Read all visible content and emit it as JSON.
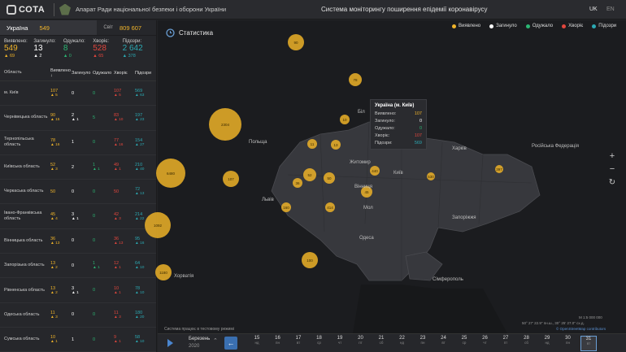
{
  "header": {
    "logo_text": "СОТА",
    "org_name": "Апарат Ради національної безпеки і оборони України",
    "system_title": "Система моніторингу поширення епідемії коронавірусу",
    "lang_uk": "UK",
    "lang_en": "EN"
  },
  "summary": {
    "country_label": "Україна",
    "country_value": "549",
    "world_label": "Світ",
    "world_value": "809 607"
  },
  "stats": [
    {
      "label": "Виявлено:",
      "value": "549",
      "delta": "69",
      "color": "#f0b42a"
    },
    {
      "label": "Загинуло:",
      "value": "13",
      "delta": "2",
      "color": "#ffffff"
    },
    {
      "label": "Одужало:",
      "value": "8",
      "delta": "0",
      "color": "#2bb673"
    },
    {
      "label": "Хворіє:",
      "value": "528",
      "delta": "65",
      "color": "#e2463d"
    },
    {
      "label": "Підозри:",
      "value": "2 642",
      "delta": "378",
      "color": "#2ba9b3"
    }
  ],
  "table": {
    "headers": [
      "Область",
      "Виявлено ↓",
      "Загинуло",
      "Одужало",
      "Хворіє",
      "Підозри"
    ],
    "rows": [
      {
        "region": "м. Київ",
        "vals": [
          "107",
          "0",
          "0",
          "107",
          "569"
        ],
        "deltas": [
          "5",
          "",
          "",
          "5",
          "63"
        ]
      },
      {
        "region": "Чернівецька область",
        "vals": [
          "90",
          "2",
          "5",
          "83",
          "197"
        ],
        "deltas": [
          "15",
          "1",
          "",
          "10",
          "23"
        ]
      },
      {
        "region": "Тернопільська область",
        "vals": [
          "78",
          "1",
          "0",
          "77",
          "154"
        ],
        "deltas": [
          "16",
          "",
          "",
          "16",
          "27"
        ]
      },
      {
        "region": "Київська область",
        "vals": [
          "52",
          "2",
          "1",
          "49",
          "210"
        ],
        "deltas": [
          "3",
          "",
          "1",
          "1",
          "40"
        ]
      },
      {
        "region": "Черкаська область",
        "vals": [
          "50",
          "0",
          "0",
          "50",
          "72"
        ],
        "deltas": [
          "",
          "",
          "",
          "",
          "13"
        ]
      },
      {
        "region": "Івано-Франківська область",
        "vals": [
          "45",
          "3",
          "0",
          "42",
          "214"
        ],
        "deltas": [
          "4",
          "1",
          "",
          "3",
          "22"
        ]
      },
      {
        "region": "Вінницька область",
        "vals": [
          "36",
          "0",
          "0",
          "36",
          "95"
        ],
        "deltas": [
          "13",
          "",
          "",
          "13",
          "16"
        ]
      },
      {
        "region": "Запорізька область",
        "vals": [
          "13",
          "0",
          "1",
          "12",
          "64"
        ],
        "deltas": [
          "2",
          "",
          "1",
          "1",
          "10"
        ]
      },
      {
        "region": "Рівненська область",
        "vals": [
          "13",
          "3",
          "0",
          "10",
          "78"
        ],
        "deltas": [
          "2",
          "1",
          "",
          "1",
          "10"
        ]
      },
      {
        "region": "Одеська область",
        "vals": [
          "11",
          "0",
          "0",
          "11",
          "180"
        ],
        "deltas": [
          "3",
          "",
          "",
          "3",
          "20"
        ]
      },
      {
        "region": "Сумська область",
        "vals": [
          "10",
          "1",
          "0",
          "9",
          "58"
        ],
        "deltas": [
          "1",
          "",
          "",
          "1",
          "10"
        ]
      }
    ]
  },
  "map": {
    "statistics_button": "Статистика",
    "legend": [
      {
        "label": "Виявлено",
        "color": "#f0b42a"
      },
      {
        "label": "Загинуло",
        "color": "#ffffff"
      },
      {
        "label": "Одужало",
        "color": "#2bb673"
      },
      {
        "label": "Хворіє",
        "color": "#e2463d"
      },
      {
        "label": "Підозри",
        "color": "#2ba9b3"
      }
    ],
    "labels": {
      "poland": "Польща",
      "belarus": "Біл",
      "russia": "Російська Федерація",
      "croatia": "Хорватія",
      "moldova": "Мол",
      "kyiv": "Київ",
      "kharkiv": "Харків",
      "odesa": "Одеса",
      "simferopol": "Сімферополь",
      "zhytomyr": "Житомир",
      "vinnytsia": "Вінниця",
      "lviv": "Львів",
      "zaporizhzhia": "Запоріжжя"
    },
    "tooltip": {
      "title": "Україна (м. Київ)",
      "rows": [
        {
          "label": "Виявлено:",
          "value": "107",
          "color": "#f0b42a"
        },
        {
          "label": "Загинуло:",
          "value": "0",
          "color": "#ffffff"
        },
        {
          "label": "Одужало:",
          "value": "0",
          "color": "#2bb673"
        },
        {
          "label": "Хворіє:",
          "value": "107",
          "color": "#e2463d"
        },
        {
          "label": "Підозри:",
          "value": "569",
          "color": "#2ba9b3"
        }
      ]
    },
    "scale": "M 1:5 000 000",
    "coords": "50° 27' 22.9\" пн.ш., 30° 25' 27.0\" сх.д.",
    "attribution": "© OpenStreetMap contributors",
    "notice": "Система працює в тестовому режимі",
    "bubble_labels": [
      "2304",
      "6480",
      "1092",
      "107",
      "90",
      "78",
      "52",
      "50",
      "45",
      "36",
      "13",
      "11",
      "10",
      "160",
      "414",
      "440",
      "530",
      "397",
      "1180",
      "100"
    ]
  },
  "timeline": {
    "month": "Березень",
    "year": "2020",
    "days": [
      {
        "n": "15",
        "w": "нд"
      },
      {
        "n": "16",
        "w": "пн"
      },
      {
        "n": "17",
        "w": "вт"
      },
      {
        "n": "18",
        "w": "ср"
      },
      {
        "n": "19",
        "w": "чт"
      },
      {
        "n": "20",
        "w": "пт"
      },
      {
        "n": "21",
        "w": "сб"
      },
      {
        "n": "22",
        "w": "нд"
      },
      {
        "n": "23",
        "w": "пн"
      },
      {
        "n": "24",
        "w": "вт"
      },
      {
        "n": "25",
        "w": "ср"
      },
      {
        "n": "26",
        "w": "чт"
      },
      {
        "n": "27",
        "w": "пт"
      },
      {
        "n": "28",
        "w": "сб"
      },
      {
        "n": "29",
        "w": "нд"
      },
      {
        "n": "30",
        "w": "пн"
      },
      {
        "n": "31",
        "w": "вт"
      }
    ]
  }
}
